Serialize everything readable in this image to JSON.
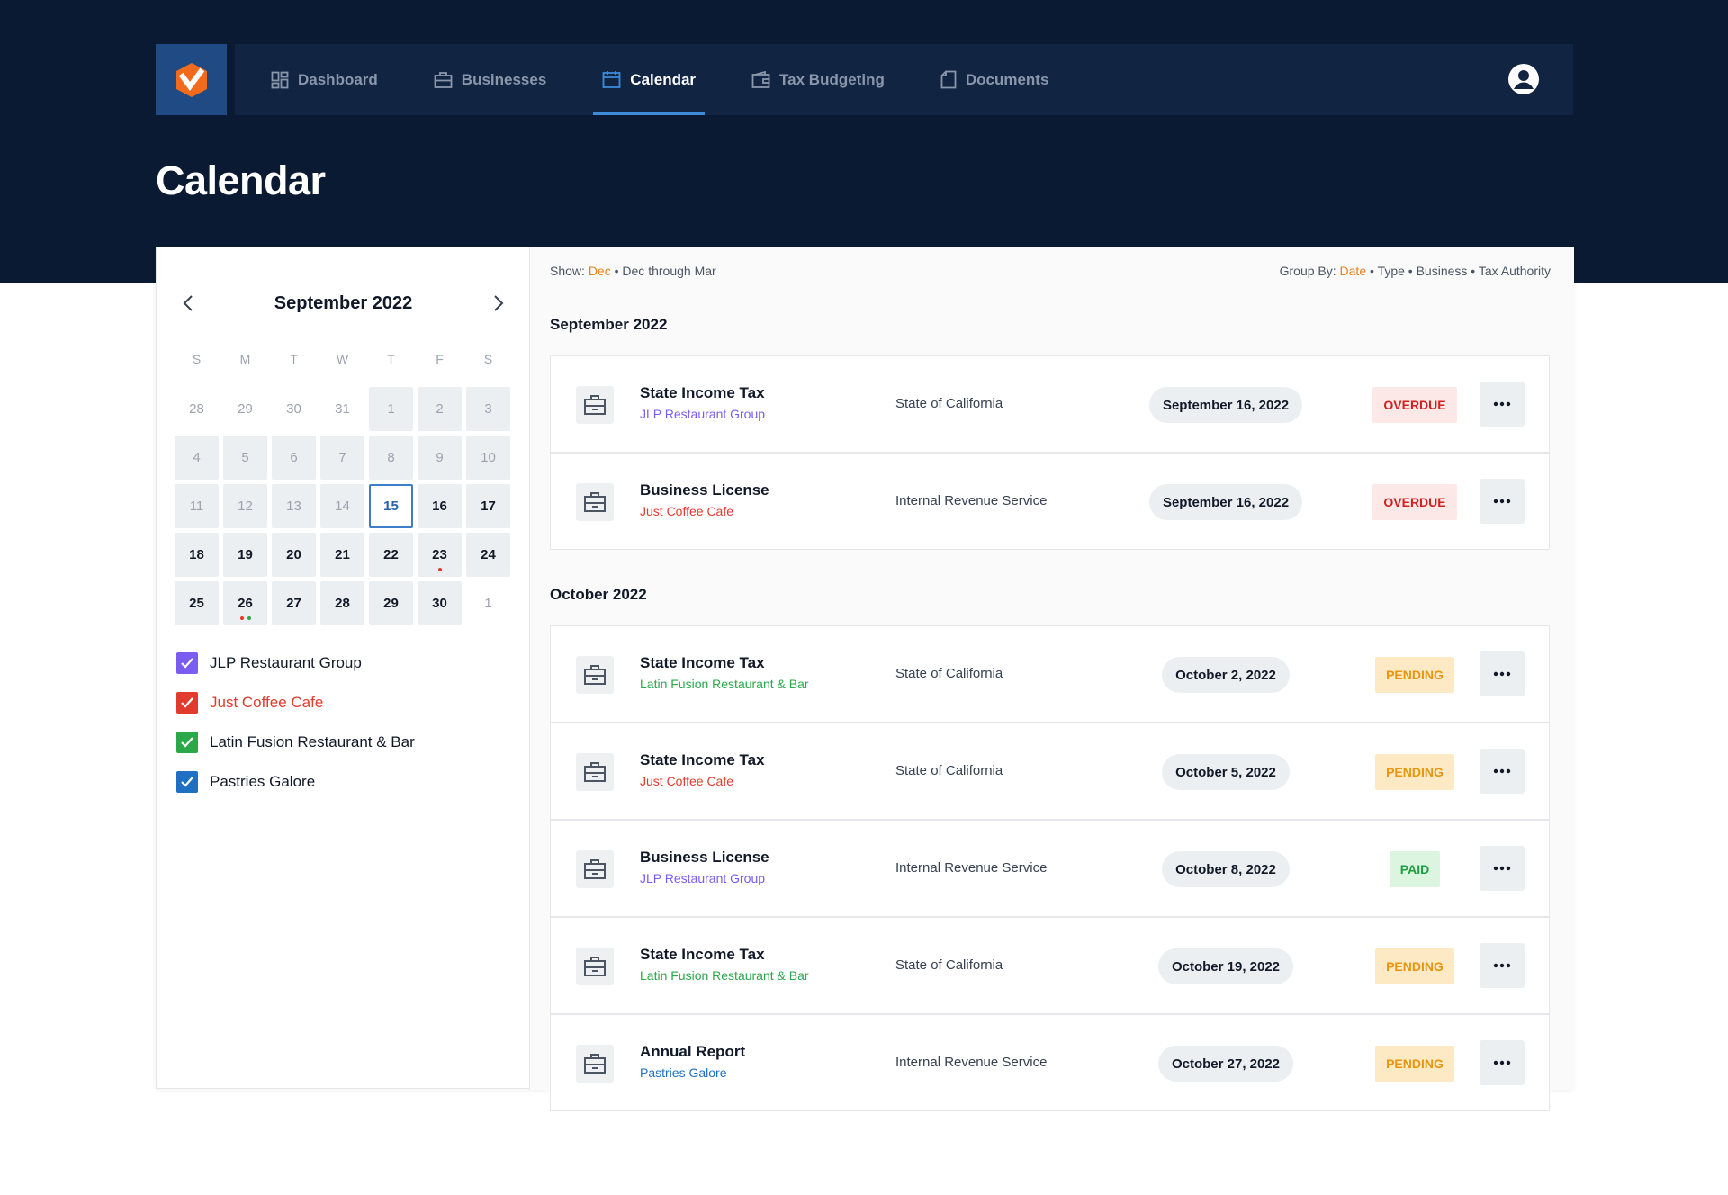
{
  "app": {
    "logo": "logo-icon",
    "nav": [
      {
        "label": "Dashboard",
        "icon": "dashboard-icon",
        "active": false
      },
      {
        "label": "Businesses",
        "icon": "briefcase-icon",
        "active": false
      },
      {
        "label": "Calendar",
        "icon": "calendar-icon",
        "active": true
      },
      {
        "label": "Tax Budgeting",
        "icon": "wallet-icon",
        "active": false
      },
      {
        "label": "Documents",
        "icon": "document-icon",
        "active": false
      }
    ],
    "account_icon": "user-circle-icon"
  },
  "page": {
    "title": "Calendar"
  },
  "calendar": {
    "month_label": "September 2022",
    "weekdays": [
      "S",
      "M",
      "T",
      "W",
      "T",
      "F",
      "S"
    ],
    "days": [
      {
        "n": "28",
        "state": "other"
      },
      {
        "n": "29",
        "state": "other"
      },
      {
        "n": "30",
        "state": "other"
      },
      {
        "n": "31",
        "state": "other"
      },
      {
        "n": "1",
        "state": "past"
      },
      {
        "n": "2",
        "state": "past"
      },
      {
        "n": "3",
        "state": "past"
      },
      {
        "n": "4",
        "state": "past"
      },
      {
        "n": "5",
        "state": "past"
      },
      {
        "n": "6",
        "state": "past"
      },
      {
        "n": "7",
        "state": "past"
      },
      {
        "n": "8",
        "state": "past"
      },
      {
        "n": "9",
        "state": "past"
      },
      {
        "n": "10",
        "state": "past"
      },
      {
        "n": "11",
        "state": "past"
      },
      {
        "n": "12",
        "state": "past"
      },
      {
        "n": "13",
        "state": "past"
      },
      {
        "n": "14",
        "state": "past"
      },
      {
        "n": "15",
        "state": "today"
      },
      {
        "n": "16",
        "state": "future"
      },
      {
        "n": "17",
        "state": "future"
      },
      {
        "n": "18",
        "state": "future"
      },
      {
        "n": "19",
        "state": "future"
      },
      {
        "n": "20",
        "state": "future"
      },
      {
        "n": "21",
        "state": "future"
      },
      {
        "n": "22",
        "state": "future"
      },
      {
        "n": "23",
        "state": "future",
        "dots": [
          "#e03b2c"
        ]
      },
      {
        "n": "24",
        "state": "future"
      },
      {
        "n": "25",
        "state": "future"
      },
      {
        "n": "26",
        "state": "future",
        "dots": [
          "#e03b2c",
          "#2aa84a"
        ]
      },
      {
        "n": "27",
        "state": "future"
      },
      {
        "n": "28",
        "state": "future"
      },
      {
        "n": "29",
        "state": "future"
      },
      {
        "n": "30",
        "state": "future"
      },
      {
        "n": "1",
        "state": "other"
      }
    ]
  },
  "businesses": [
    {
      "name": "JLP Restaurant Group",
      "color": "#7b5cf0",
      "checked": true,
      "text_color": "#111827"
    },
    {
      "name": "Just Coffee Cafe",
      "color": "#e03b2c",
      "checked": true,
      "text_color": "#e03b2c"
    },
    {
      "name": "Latin Fusion Restaurant & Bar",
      "color": "#2aa84a",
      "checked": true,
      "text_color": "#111827"
    },
    {
      "name": "Pastries Galore",
      "color": "#1f6fc2",
      "checked": true,
      "text_color": "#111827"
    }
  ],
  "filters": {
    "show_label": "Show:",
    "show_options": [
      "Dec",
      "Dec through Mar"
    ],
    "show_selected": "Dec",
    "group_label": "Group By:",
    "group_options": [
      "Date",
      "Type",
      "Business",
      "Tax Authority"
    ],
    "group_selected": "Date",
    "separator": "•"
  },
  "groups": [
    {
      "title": "September 2022",
      "items": [
        {
          "title": "State Income Tax",
          "business": "JLP Restaurant Group",
          "business_color": "#7b5cf0",
          "authority": "State of California",
          "date": "September 16, 2022",
          "status": "OVERDUE",
          "status_kind": "overdue"
        },
        {
          "title": "Business License",
          "business": "Just Coffee Cafe",
          "business_color": "#e03b2c",
          "authority": "Internal Revenue Service",
          "date": "September 16, 2022",
          "status": "OVERDUE",
          "status_kind": "overdue"
        }
      ]
    },
    {
      "title": "October 2022",
      "items": [
        {
          "title": "State Income Tax",
          "business": "Latin Fusion Restaurant & Bar",
          "business_color": "#2aa84a",
          "authority": "State of California",
          "date": "October 2, 2022",
          "status": "PENDING",
          "status_kind": "pending"
        },
        {
          "title": "State Income Tax",
          "business": "Just Coffee Cafe",
          "business_color": "#e03b2c",
          "authority": "State of California",
          "date": "October 5, 2022",
          "status": "PENDING",
          "status_kind": "pending"
        },
        {
          "title": "Business License",
          "business": "JLP Restaurant Group",
          "business_color": "#7b5cf0",
          "authority": "Internal Revenue Service",
          "date": "October 8, 2022",
          "status": "PAID",
          "status_kind": "paid"
        },
        {
          "title": "State Income Tax",
          "business": "Latin Fusion Restaurant & Bar",
          "business_color": "#2aa84a",
          "authority": "State of California",
          "date": "October 19, 2022",
          "status": "PENDING",
          "status_kind": "pending"
        },
        {
          "title": "Annual Report",
          "business": "Pastries Galore",
          "business_color": "#1f6fc2",
          "authority": "Internal Revenue Service",
          "date": "October 27, 2022",
          "status": "PENDING",
          "status_kind": "pending"
        }
      ]
    }
  ]
}
